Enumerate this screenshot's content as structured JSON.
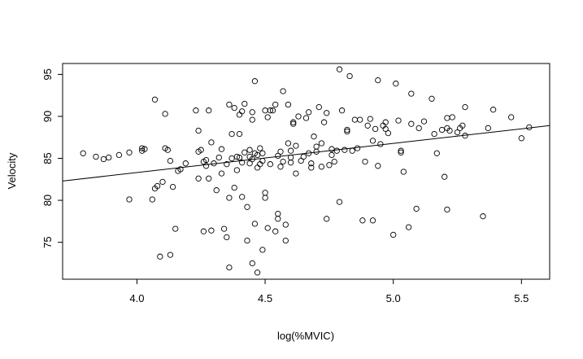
{
  "chart_data": {
    "type": "scatter",
    "title": "",
    "xlabel": "log(%MVIC)",
    "ylabel": "Velocity",
    "xlim": [
      3.71,
      5.61
    ],
    "ylim": [
      70.6,
      96.3
    ],
    "xticks": [
      4.0,
      4.5,
      5.0,
      5.5
    ],
    "xtick_labels": [
      "4.0",
      "4.5",
      "5.0",
      "5.5"
    ],
    "yticks": [
      75,
      80,
      85,
      90,
      95
    ],
    "ytick_labels": [
      "75",
      "80",
      "85",
      "90",
      "95"
    ],
    "grid": false,
    "legend": "none",
    "marker": "open-circle",
    "colors": {
      "points": "#000000",
      "line": "#000000",
      "frame": "#000000"
    },
    "fit_line": {
      "x": [
        3.71,
        5.61
      ],
      "y": [
        82.3,
        88.9
      ]
    },
    "points": [
      [
        3.79,
        85.6
      ],
      [
        3.84,
        85.2
      ],
      [
        3.87,
        84.9
      ],
      [
        3.89,
        85.1
      ],
      [
        3.93,
        85.4
      ],
      [
        3.97,
        85.7
      ],
      [
        3.97,
        80.1
      ],
      [
        4.02,
        85.9
      ],
      [
        4.02,
        86.2
      ],
      [
        4.03,
        86.1
      ],
      [
        4.06,
        80.1
      ],
      [
        4.07,
        81.4
      ],
      [
        4.07,
        92.0
      ],
      [
        4.08,
        81.7
      ],
      [
        4.09,
        73.3
      ],
      [
        4.1,
        82.2
      ],
      [
        4.11,
        86.2
      ],
      [
        4.11,
        90.3
      ],
      [
        4.12,
        86.0
      ],
      [
        4.13,
        73.5
      ],
      [
        4.13,
        84.7
      ],
      [
        4.14,
        81.6
      ],
      [
        4.15,
        76.6
      ],
      [
        4.16,
        83.5
      ],
      [
        4.17,
        83.7
      ],
      [
        4.19,
        84.4
      ],
      [
        4.23,
        90.7
      ],
      [
        4.24,
        88.3
      ],
      [
        4.24,
        82.6
      ],
      [
        4.24,
        85.8
      ],
      [
        4.25,
        86.0
      ],
      [
        4.26,
        76.3
      ],
      [
        4.26,
        84.6
      ],
      [
        4.27,
        84.8
      ],
      [
        4.27,
        84.1
      ],
      [
        4.28,
        82.6
      ],
      [
        4.28,
        90.7
      ],
      [
        4.29,
        76.4
      ],
      [
        4.29,
        86.9
      ],
      [
        4.3,
        84.4
      ],
      [
        4.31,
        81.2
      ],
      [
        4.32,
        85.1
      ],
      [
        4.33,
        83.2
      ],
      [
        4.33,
        86.1
      ],
      [
        4.34,
        76.6
      ],
      [
        4.35,
        75.6
      ],
      [
        4.35,
        84.3
      ],
      [
        4.36,
        72.0
      ],
      [
        4.36,
        91.4
      ],
      [
        4.36,
        80.3
      ],
      [
        4.37,
        85.0
      ],
      [
        4.37,
        87.9
      ],
      [
        4.38,
        91.0
      ],
      [
        4.38,
        81.5
      ],
      [
        4.39,
        85.2
      ],
      [
        4.39,
        83.6
      ],
      [
        4.4,
        85.1
      ],
      [
        4.4,
        90.2
      ],
      [
        4.4,
        87.9
      ],
      [
        4.41,
        80.4
      ],
      [
        4.41,
        84.5
      ],
      [
        4.41,
        90.6
      ],
      [
        4.42,
        91.5
      ],
      [
        4.42,
        85.7
      ],
      [
        4.43,
        75.2
      ],
      [
        4.43,
        79.2
      ],
      [
        4.44,
        85.2
      ],
      [
        4.44,
        84.4
      ],
      [
        4.44,
        86.0
      ],
      [
        4.45,
        72.5
      ],
      [
        4.45,
        84.9
      ],
      [
        4.45,
        90.5
      ],
      [
        4.45,
        89.6
      ],
      [
        4.46,
        94.2
      ],
      [
        4.46,
        85.6
      ],
      [
        4.46,
        77.2
      ],
      [
        4.47,
        71.4
      ],
      [
        4.47,
        83.9
      ],
      [
        4.47,
        85.4
      ],
      [
        4.48,
        86.2
      ],
      [
        4.48,
        84.3
      ],
      [
        4.49,
        84.7
      ],
      [
        4.49,
        85.6
      ],
      [
        4.49,
        74.1
      ],
      [
        4.5,
        80.3
      ],
      [
        4.5,
        80.9
      ],
      [
        4.5,
        90.7
      ],
      [
        4.51,
        89.9
      ],
      [
        4.51,
        76.7
      ],
      [
        4.52,
        90.7
      ],
      [
        4.52,
        84.3
      ],
      [
        4.53,
        90.7
      ],
      [
        4.54,
        91.4
      ],
      [
        4.54,
        76.3
      ],
      [
        4.55,
        78.4
      ],
      [
        4.55,
        77.8
      ],
      [
        4.55,
        85.3
      ],
      [
        4.56,
        85.8
      ],
      [
        4.56,
        84.0
      ],
      [
        4.57,
        93.0
      ],
      [
        4.57,
        84.6
      ],
      [
        4.58,
        75.2
      ],
      [
        4.58,
        77.1
      ],
      [
        4.59,
        91.4
      ],
      [
        4.59,
        86.8
      ],
      [
        4.6,
        85.9
      ],
      [
        4.6,
        84.5
      ],
      [
        4.6,
        85.1
      ],
      [
        4.61,
        89.3
      ],
      [
        4.61,
        89.1
      ],
      [
        4.62,
        83.2
      ],
      [
        4.62,
        86.5
      ],
      [
        4.63,
        90.0
      ],
      [
        4.64,
        84.7
      ],
      [
        4.65,
        85.2
      ],
      [
        4.66,
        89.8
      ],
      [
        4.67,
        85.6
      ],
      [
        4.67,
        90.5
      ],
      [
        4.68,
        83.9
      ],
      [
        4.68,
        84.4
      ],
      [
        4.69,
        87.6
      ],
      [
        4.7,
        86.4
      ],
      [
        4.7,
        85.8
      ],
      [
        4.71,
        91.1
      ],
      [
        4.72,
        86.8
      ],
      [
        4.72,
        84.0
      ],
      [
        4.73,
        89.3
      ],
      [
        4.74,
        77.8
      ],
      [
        4.74,
        90.4
      ],
      [
        4.75,
        84.2
      ],
      [
        4.76,
        86.1
      ],
      [
        4.76,
        85.4
      ],
      [
        4.77,
        84.6
      ],
      [
        4.78,
        85.9
      ],
      [
        4.79,
        95.6
      ],
      [
        4.79,
        79.8
      ],
      [
        4.8,
        90.7
      ],
      [
        4.81,
        86.0
      ],
      [
        4.82,
        88.2
      ],
      [
        4.82,
        88.4
      ],
      [
        4.83,
        94.8
      ],
      [
        4.84,
        85.9
      ],
      [
        4.85,
        89.6
      ],
      [
        4.86,
        86.2
      ],
      [
        4.87,
        89.6
      ],
      [
        4.88,
        77.6
      ],
      [
        4.89,
        84.6
      ],
      [
        4.9,
        88.9
      ],
      [
        4.91,
        89.7
      ],
      [
        4.92,
        77.6
      ],
      [
        4.92,
        87.1
      ],
      [
        4.93,
        88.5
      ],
      [
        4.94,
        94.3
      ],
      [
        4.94,
        84.1
      ],
      [
        4.95,
        86.7
      ],
      [
        4.96,
        88.9
      ],
      [
        4.97,
        89.3
      ],
      [
        4.97,
        88.5
      ],
      [
        4.98,
        88.0
      ],
      [
        5.0,
        75.9
      ],
      [
        5.01,
        93.9
      ],
      [
        5.02,
        89.5
      ],
      [
        5.03,
        85.7
      ],
      [
        5.03,
        85.9
      ],
      [
        5.04,
        83.4
      ],
      [
        5.06,
        76.8
      ],
      [
        5.07,
        89.1
      ],
      [
        5.07,
        92.7
      ],
      [
        5.09,
        79.0
      ],
      [
        5.1,
        88.6
      ],
      [
        5.12,
        89.4
      ],
      [
        5.15,
        92.1
      ],
      [
        5.16,
        87.9
      ],
      [
        5.17,
        85.6
      ],
      [
        5.19,
        88.4
      ],
      [
        5.2,
        82.8
      ],
      [
        5.21,
        78.9
      ],
      [
        5.21,
        89.8
      ],
      [
        5.21,
        88.6
      ],
      [
        5.22,
        88.3
      ],
      [
        5.23,
        89.9
      ],
      [
        5.25,
        88.1
      ],
      [
        5.26,
        88.6
      ],
      [
        5.27,
        88.9
      ],
      [
        5.28,
        91.1
      ],
      [
        5.28,
        87.7
      ],
      [
        5.35,
        78.1
      ],
      [
        5.37,
        88.6
      ],
      [
        5.39,
        90.8
      ],
      [
        5.46,
        89.9
      ],
      [
        5.5,
        87.4
      ],
      [
        5.53,
        88.7
      ]
    ]
  }
}
